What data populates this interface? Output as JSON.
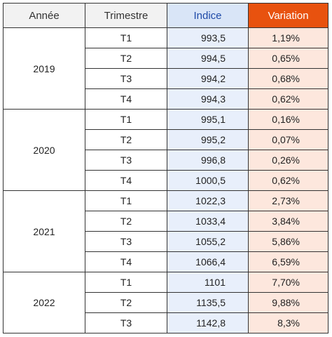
{
  "headers": {
    "annee": "Année",
    "trimestre": "Trimestre",
    "indice": "Indice",
    "variation": "Variation"
  },
  "years": [
    {
      "year": "2019",
      "rows": [
        {
          "t": "T1",
          "indice": "993,5",
          "variation": "1,19%"
        },
        {
          "t": "T2",
          "indice": "994,5",
          "variation": "0,65%"
        },
        {
          "t": "T3",
          "indice": "994,2",
          "variation": "0,68%"
        },
        {
          "t": "T4",
          "indice": "994,3",
          "variation": "0,62%"
        }
      ]
    },
    {
      "year": "2020",
      "rows": [
        {
          "t": "T1",
          "indice": "995,1",
          "variation": "0,16%"
        },
        {
          "t": "T2",
          "indice": "995,2",
          "variation": "0,07%"
        },
        {
          "t": "T3",
          "indice": "996,8",
          "variation": "0,26%"
        },
        {
          "t": "T4",
          "indice": "1000,5",
          "variation": "0,62%"
        }
      ]
    },
    {
      "year": "2021",
      "rows": [
        {
          "t": "T1",
          "indice": "1022,3",
          "variation": "2,73%"
        },
        {
          "t": "T2",
          "indice": "1033,4",
          "variation": "3,84%"
        },
        {
          "t": "T3",
          "indice": "1055,2",
          "variation": "5,86%"
        },
        {
          "t": "T4",
          "indice": "1066,4",
          "variation": "6,59%"
        }
      ]
    },
    {
      "year": "2022",
      "rows": [
        {
          "t": "T1",
          "indice": "1101",
          "variation": "7,70%"
        },
        {
          "t": "T2",
          "indice": "1135,5",
          "variation": "9,88%"
        },
        {
          "t": "T3",
          "indice": "1142,8",
          "variation": "8,3%"
        }
      ]
    }
  ]
}
